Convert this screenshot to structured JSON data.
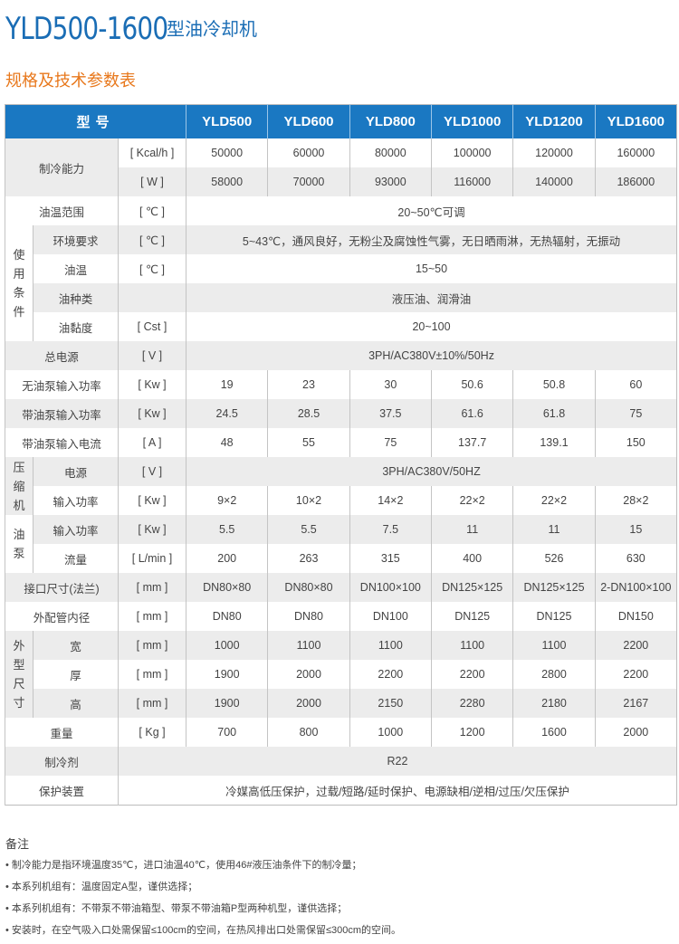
{
  "header": {
    "model": "YLD500-1600",
    "type": "型油冷却机",
    "subtitle": "规格及技术参数表"
  },
  "table": {
    "head_label": "型号",
    "models": [
      "YLD500",
      "YLD600",
      "YLD800",
      "YLD1000",
      "YLD1200",
      "YLD1600"
    ],
    "rows": [
      {
        "label": "制冷能力",
        "sub": [
          {
            "unit": "[ Kcal/h ]",
            "values": [
              "50000",
              "60000",
              "80000",
              "100000",
              "120000",
              "160000"
            ]
          },
          {
            "unit": "[ W ]",
            "values": [
              "58000",
              "70000",
              "93000",
              "116000",
              "140000",
              "186000"
            ]
          }
        ]
      },
      {
        "label": "油温范围",
        "unit": "[ ℃ ]",
        "span": "20~50℃可调"
      },
      {
        "group": "使用条件",
        "items": [
          {
            "label": "环境要求",
            "unit": "[ ℃ ]",
            "span": "5~43℃，通风良好，无粉尘及腐蚀性气雾，无日晒雨淋，无热辐射，无振动"
          },
          {
            "label": "油温",
            "unit": "[ ℃ ]",
            "span": "15~50"
          },
          {
            "label": "油种类",
            "unit": "",
            "span": "液压油、润滑油"
          },
          {
            "label": "油黏度",
            "unit": "[ Cst ]",
            "span": "20~100"
          }
        ]
      },
      {
        "label": "总电源",
        "unit": "[ V ]",
        "span": "3PH/AC380V±10%/50Hz"
      },
      {
        "label": "无油泵输入功率",
        "unit": "[ Kw ]",
        "values": [
          "19",
          "23",
          "30",
          "50.6",
          "50.8",
          "60"
        ]
      },
      {
        "label": "带油泵输入功率",
        "unit": "[ Kw ]",
        "values": [
          "24.5",
          "28.5",
          "37.5",
          "61.6",
          "61.8",
          "75"
        ]
      },
      {
        "label": "带油泵输入电流",
        "unit": "[ A ]",
        "values": [
          "48",
          "55",
          "75",
          "137.7",
          "139.1",
          "150"
        ]
      },
      {
        "group": "压缩机",
        "items": [
          {
            "label": "电源",
            "unit": "[ V ]",
            "span": "3PH/AC380V/50HZ"
          },
          {
            "label": "输入功率",
            "unit": "[ Kw ]",
            "values": [
              "9×2",
              "10×2",
              "14×2",
              "22×2",
              "22×2",
              "28×2"
            ]
          }
        ]
      },
      {
        "group": "油泵",
        "items": [
          {
            "label": "输入功率",
            "unit": "[ Kw ]",
            "values": [
              "5.5",
              "5.5",
              "7.5",
              "11",
              "11",
              "15"
            ]
          },
          {
            "label": "流量",
            "unit": "[ L/min ]",
            "values": [
              "200",
              "263",
              "315",
              "400",
              "526",
              "630"
            ]
          }
        ]
      },
      {
        "label": "接口尺寸(法兰)",
        "unit": "[ mm ]",
        "values": [
          "DN80×80",
          "DN80×80",
          "DN100×100",
          "DN125×125",
          "DN125×125",
          "2-DN100×100"
        ]
      },
      {
        "label": "外配管内径",
        "unit": "[ mm ]",
        "values": [
          "DN80",
          "DN80",
          "DN100",
          "DN125",
          "DN125",
          "DN150"
        ]
      },
      {
        "group": "外型尺寸",
        "items": [
          {
            "label": "宽",
            "unit": "[ mm ]",
            "values": [
              "1000",
              "1100",
              "1100",
              "1100",
              "1100",
              "2200"
            ]
          },
          {
            "label": "厚",
            "unit": "[ mm ]",
            "values": [
              "1900",
              "2000",
              "2200",
              "2200",
              "2800",
              "2200"
            ]
          },
          {
            "label": "高",
            "unit": "[ mm ]",
            "values": [
              "1900",
              "2000",
              "2150",
              "2280",
              "2180",
              "2167"
            ]
          }
        ]
      },
      {
        "label": "重量",
        "unit": "[ Kg ]",
        "values": [
          "700",
          "800",
          "1000",
          "1200",
          "1600",
          "2000"
        ]
      },
      {
        "label": "制冷剂",
        "wide": "R22"
      },
      {
        "label": "保护装置",
        "wide": "冷媒高低压保护，过载/短路/延时保护、电源缺相/逆相/过压/欠压保护"
      }
    ]
  },
  "notes": {
    "heading": "备注",
    "items": [
      "制冷能力是指环境温度35℃，进口油温40℃，使用46#液压油条件下的制冷量；",
      "本系列机组有：温度固定A型，谨供选择；",
      "本系列机组有：不带泵不带油箱型、带泵不带油箱P型两种机型，谨供选择；",
      "安装时，在空气吸入口处需保留≤100cm的空间，在热风排出口处需保留≤300cm的空间。"
    ]
  },
  "colors": {
    "title": "#1a6db5",
    "subtitle": "#e8781c",
    "header_bg": "#1a78c2",
    "stripe": "#ececec"
  }
}
